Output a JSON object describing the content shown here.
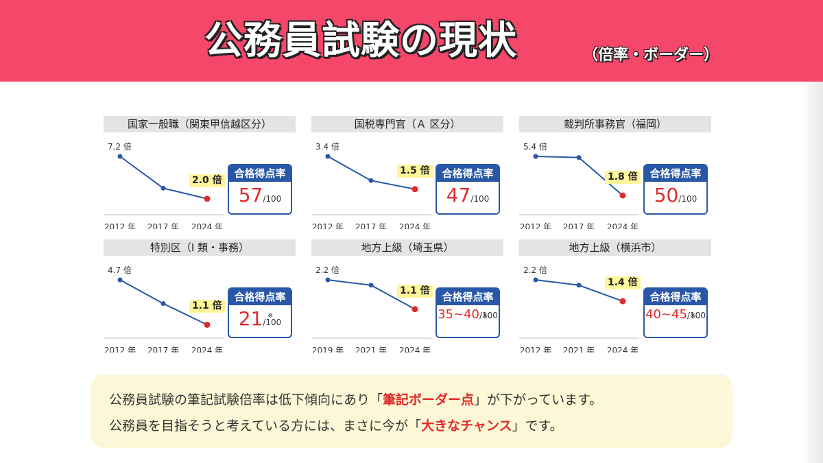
{
  "header": {
    "title": "公務員試験の現状",
    "subtitle": "（倍率・ボーダー）"
  },
  "common": {
    "box_title": "合格得点率",
    "denominator": "/100",
    "note_mark": "※"
  },
  "chart_data": [
    {
      "type": "line",
      "title": "国家一般職（関東甲信越区分）",
      "categories": [
        "2012 年",
        "2017 年",
        "2024 年"
      ],
      "values": [
        7.2,
        3.3,
        2.0
      ],
      "start_label": "7.2 倍",
      "end_label": "2.0 倍",
      "pass_rate": "57",
      "has_note": false
    },
    {
      "type": "line",
      "title": "国税専門官（Ａ 区分）",
      "categories": [
        "2012 年",
        "2017 年",
        "2024 年"
      ],
      "values": [
        3.4,
        2.0,
        1.5
      ],
      "start_label": "3.4 倍",
      "end_label": "1.5 倍",
      "pass_rate": "47",
      "has_note": false
    },
    {
      "type": "line",
      "title": "裁判所事務官（福岡）",
      "categories": [
        "2012 年",
        "2017 年",
        "2024 年"
      ],
      "values": [
        5.4,
        5.3,
        1.8
      ],
      "start_label": "5.4 倍",
      "end_label": "1.8 倍",
      "pass_rate": "50",
      "has_note": false
    },
    {
      "type": "line",
      "title": "特別区（Ⅰ 類・事務）",
      "categories": [
        "2012 年",
        "2017 年",
        "2024 年"
      ],
      "values": [
        4.7,
        2.8,
        1.1
      ],
      "start_label": "4.7 倍",
      "end_label": "1.1 倍",
      "pass_rate": "21",
      "has_note": true
    },
    {
      "type": "line",
      "title": "地方上級（埼玉県）",
      "categories": [
        "2019 年",
        "2021 年",
        "2024 年"
      ],
      "values": [
        2.2,
        2.0,
        1.1
      ],
      "start_label": "2.2 倍",
      "end_label": "1.1 倍",
      "pass_rate": "35~40",
      "has_note": true
    },
    {
      "type": "line",
      "title": "地方上級（横浜市）",
      "categories": [
        "2012 年",
        "2021 年",
        "2024 年"
      ],
      "values": [
        2.2,
        2.0,
        1.4
      ],
      "start_label": "2.2 倍",
      "end_label": "1.4 倍",
      "pass_rate": "40~45",
      "has_note": true
    }
  ],
  "footer": {
    "line1_a": "公務員試験の筆記試験倍率は低下傾向にあり「",
    "line1_hl": "筆記ボーダー点",
    "line1_b": "」が下がっています。",
    "line2_a": "公務員を目指そうと考えている方には、まさに今が「",
    "line2_hl": "大きなチャンス",
    "line2_b": "」です。"
  },
  "colors": {
    "banner": "#f4476a",
    "line": "#2857a8",
    "accent": "#e02a2a",
    "box": "#2857a8"
  }
}
